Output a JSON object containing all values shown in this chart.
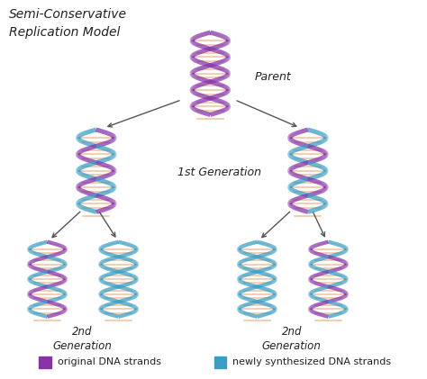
{
  "title": "Semi-Conservative\nReplication Model",
  "background_color": "#ffffff",
  "purple_color": "#8833AA",
  "blue_color": "#3A9EC4",
  "peach_color": "#F0C8A8",
  "arrow_color": "#555555",
  "text_color": "#222222",
  "legend_purple_label": "original DNA strands",
  "legend_blue_label": "newly synthesized DNA strands",
  "parent_label": "Parent",
  "gen1_label": "1st Generation",
  "gen2_left_label": "2nd\nGeneration",
  "gen2_right_label": "2nd\nGeneration"
}
